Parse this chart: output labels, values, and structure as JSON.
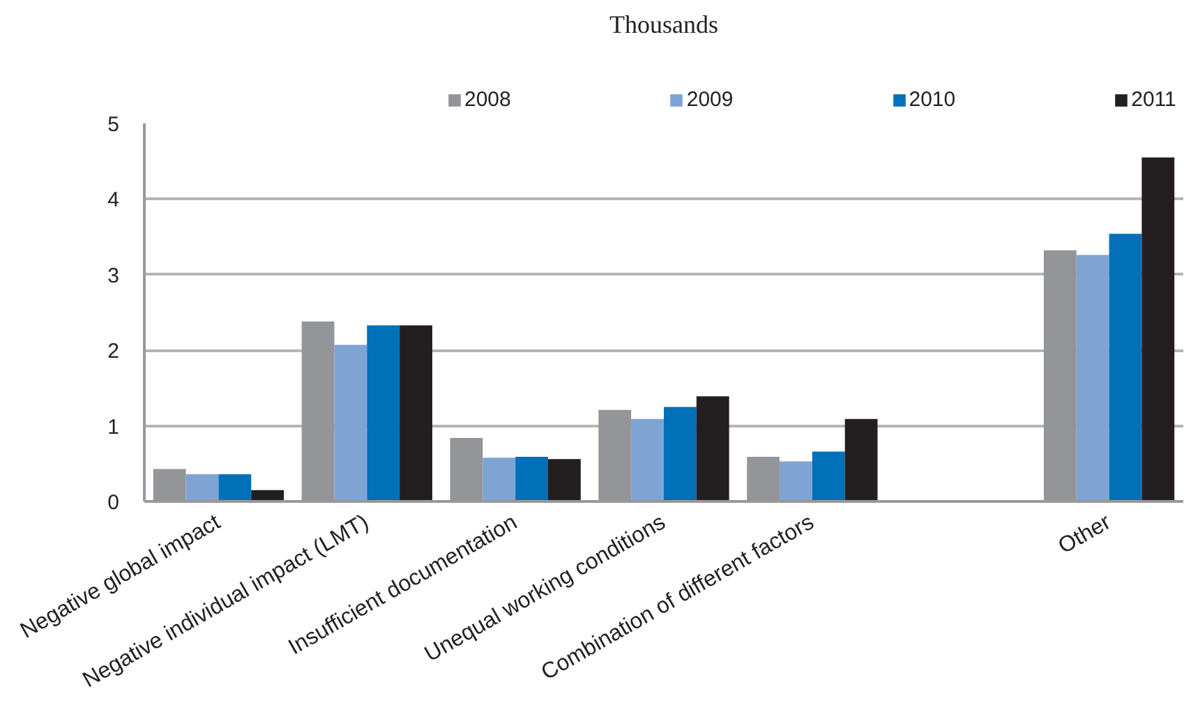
{
  "chart_data": {
    "type": "bar",
    "title": "Thousands",
    "categories": [
      "Negative global impact",
      "Negative individual impact (LMT)",
      "Insufficient documentation",
      "Unequal working conditions",
      "Combination of different factors",
      null,
      "Other"
    ],
    "series": [
      {
        "name": "2008",
        "color": "#939598",
        "values": [
          0.43,
          2.38,
          0.84,
          1.21,
          0.59,
          null,
          3.32
        ]
      },
      {
        "name": "2009",
        "color": "#7fa4d4",
        "values": [
          0.36,
          2.07,
          0.58,
          1.09,
          0.53,
          null,
          3.26
        ]
      },
      {
        "name": "2010",
        "color": "#0070b8",
        "values": [
          0.36,
          2.33,
          0.59,
          1.25,
          0.66,
          null,
          3.54
        ]
      },
      {
        "name": "2011",
        "color": "#231f20",
        "values": [
          0.15,
          2.33,
          0.56,
          1.39,
          1.09,
          null,
          4.55
        ]
      }
    ],
    "ylim": [
      0,
      5
    ],
    "yticks": [
      0,
      1,
      2,
      3,
      4,
      5
    ],
    "grid": "y",
    "legend": "top"
  }
}
